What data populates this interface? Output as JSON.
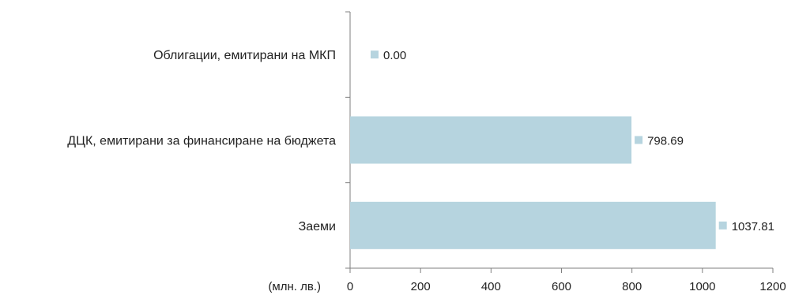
{
  "chart_data": {
    "type": "bar",
    "orientation": "horizontal",
    "categories": [
      "Облигации, емитирани на МКП",
      "ДЦК, емитирани за финансиране на бюджета",
      "Заеми"
    ],
    "values": [
      0.0,
      798.69,
      1037.81
    ],
    "value_labels": [
      "0.00",
      "798.69",
      "1037.81"
    ],
    "xlabel": "(млн. лв.)",
    "ylabel": "",
    "xlim": [
      0,
      1200
    ],
    "xticks": [
      0,
      200,
      400,
      600,
      800,
      1000,
      1200
    ],
    "grid": false,
    "colors": {
      "bar": "#b6d4df",
      "axis": "#7f7f7f",
      "text": "#222222"
    }
  }
}
